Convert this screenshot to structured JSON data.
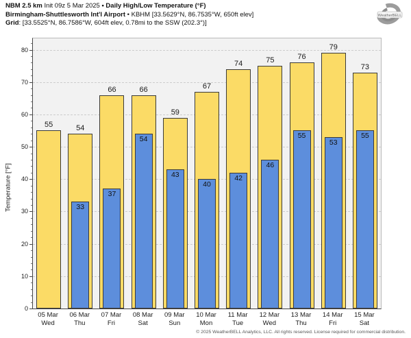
{
  "header": {
    "line1": {
      "bold1": "NBM 2.5 km",
      "normal1": " Init 09z 5 Mar 2025 ",
      "bold2": "• Daily High/Low Temperature (°F)"
    },
    "line2": {
      "bold1": "Birmingham-Shuttlesworth Int'l Airport",
      "normal1": " • KBHM [33.5629°N, 86.7535°W, 650ft elev]"
    },
    "line3": {
      "bold1": "Grid",
      "normal1": ": [33.5525°N, 86.7586°W, 604ft elev, 0.78mi to the SSW (202.3°)]"
    }
  },
  "logo": {
    "text": "WeatherBELL"
  },
  "chart_data": {
    "type": "bar",
    "title": "NBM 2.5 km Init 09z 5 Mar 2025 • Daily High/Low Temperature (°F)",
    "categories": [
      {
        "date": "05 Mar",
        "day": "Wed"
      },
      {
        "date": "06 Mar",
        "day": "Thu"
      },
      {
        "date": "07 Mar",
        "day": "Fri"
      },
      {
        "date": "08 Mar",
        "day": "Sat"
      },
      {
        "date": "09 Mar",
        "day": "Sun"
      },
      {
        "date": "10 Mar",
        "day": "Mon"
      },
      {
        "date": "11 Mar",
        "day": "Tue"
      },
      {
        "date": "12 Mar",
        "day": "Wed"
      },
      {
        "date": "13 Mar",
        "day": "Thu"
      },
      {
        "date": "14 Mar",
        "day": "Fri"
      },
      {
        "date": "15 Mar",
        "day": "Sat"
      }
    ],
    "series": [
      {
        "name": "Daily High",
        "color": "#fbdb66",
        "values": [
          55,
          54,
          66,
          66,
          59,
          67,
          74,
          75,
          76,
          79,
          73
        ]
      },
      {
        "name": "Daily Low",
        "color": "#5d8edc",
        "values": [
          null,
          33,
          37,
          54,
          43,
          40,
          42,
          46,
          55,
          53,
          55
        ]
      }
    ],
    "ylabel": "Temperature [°F]",
    "ylim": [
      0,
      83.5
    ],
    "yticks": [
      0,
      10,
      20,
      30,
      40,
      50,
      60,
      70,
      80
    ],
    "y_minor_step": 2,
    "grid": "horizontal-dashed",
    "legend": "none",
    "colors": {
      "plot_bg": "#f2f2f2",
      "grid": "#cccccc",
      "axis": "#444444",
      "spine_light": "#b9b9b9",
      "bar_border": "#3a3a3a",
      "high_fill": "#fbdb66",
      "low_fill": "#5d8edc"
    }
  },
  "footer": {
    "copyright": "© 2025 WeatherBELL Analytics, LLC. All rights reserved. License required for commercial distribution."
  }
}
